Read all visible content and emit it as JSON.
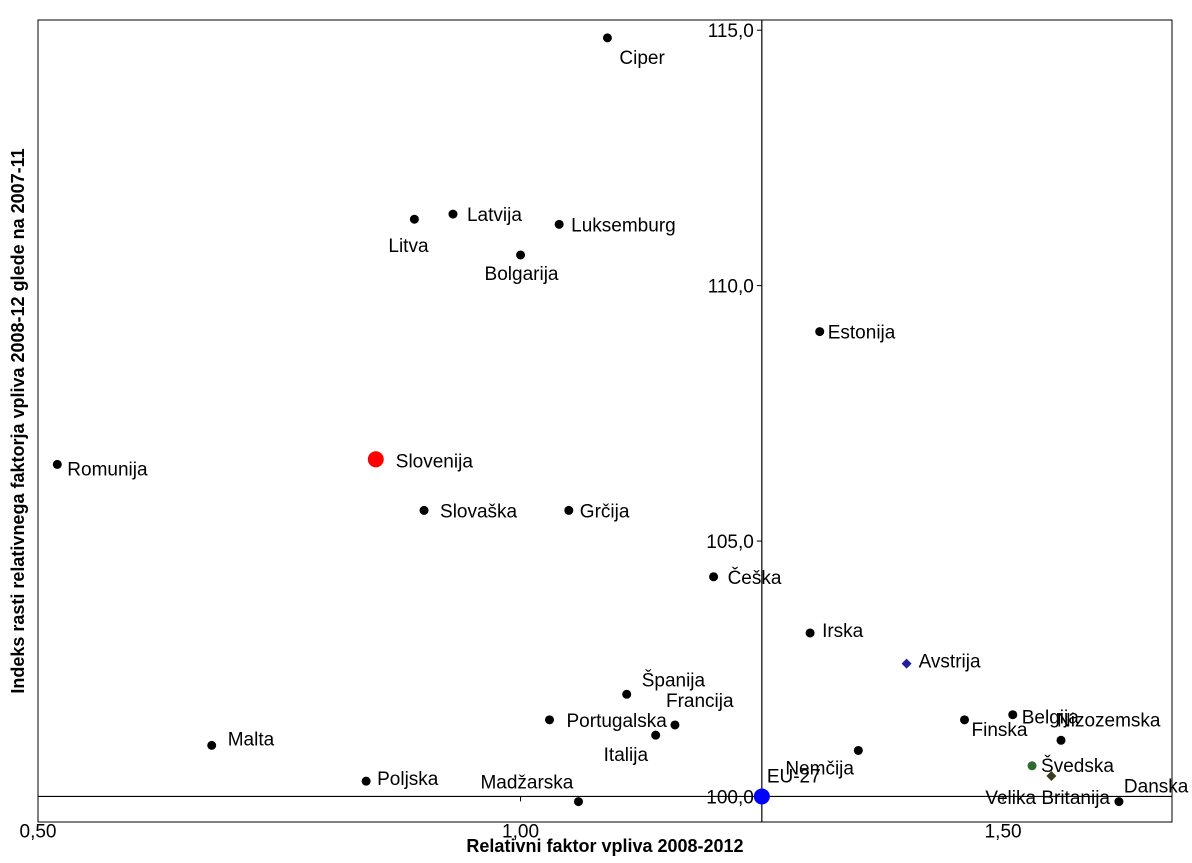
{
  "chart_data": {
    "type": "scatter",
    "xlabel": "Relativni faktor vpliva 2008-2012",
    "ylabel": "Indeks rasti relativnega faktorja vpliva 2008-12 glede na 2007-11",
    "xlim": [
      0.5,
      1.675
    ],
    "ylim": [
      99.5,
      115.2
    ],
    "x_axis_crosses_y_at": 100.0,
    "y_axis_crosses_x_at": 1.25,
    "x_ticks": [
      {
        "value": 0.5,
        "label": "0,50"
      },
      {
        "value": 1.0,
        "label": "1,00"
      },
      {
        "value": 1.5,
        "label": "1,50"
      }
    ],
    "y_ticks": [
      {
        "value": 100.0,
        "label": "100,0"
      },
      {
        "value": 105.0,
        "label": "105,0"
      },
      {
        "value": 110.0,
        "label": "110,0"
      },
      {
        "value": 115.0,
        "label": "115,0"
      }
    ],
    "grid": false,
    "points": [
      {
        "name": "Ciper",
        "x": 1.09,
        "y": 114.85,
        "color": "#000000",
        "marker": "circle",
        "highlight": false
      },
      {
        "name": "Latvija",
        "x": 0.93,
        "y": 111.4,
        "color": "#000000",
        "marker": "circle",
        "highlight": false
      },
      {
        "name": "Litva",
        "x": 0.89,
        "y": 111.3,
        "color": "#000000",
        "marker": "circle",
        "highlight": false
      },
      {
        "name": "Luksemburg",
        "x": 1.04,
        "y": 111.2,
        "color": "#000000",
        "marker": "circle",
        "highlight": false
      },
      {
        "name": "Bolgarija",
        "x": 1.0,
        "y": 110.6,
        "color": "#000000",
        "marker": "circle",
        "highlight": false
      },
      {
        "name": "Estonija",
        "x": 1.31,
        "y": 109.1,
        "color": "#000000",
        "marker": "circle",
        "highlight": false
      },
      {
        "name": "Romunija",
        "x": 0.52,
        "y": 106.5,
        "color": "#000000",
        "marker": "circle",
        "highlight": false
      },
      {
        "name": "Slovenija",
        "x": 0.85,
        "y": 106.6,
        "color": "#ff0000",
        "marker": "circle",
        "highlight": true
      },
      {
        "name": "Slovaška",
        "x": 0.9,
        "y": 105.6,
        "color": "#000000",
        "marker": "circle",
        "highlight": false
      },
      {
        "name": "Grčija",
        "x": 1.05,
        "y": 105.6,
        "color": "#000000",
        "marker": "circle",
        "highlight": false
      },
      {
        "name": "Češka",
        "x": 1.2,
        "y": 104.3,
        "color": "#000000",
        "marker": "circle",
        "highlight": false
      },
      {
        "name": "Irska",
        "x": 1.3,
        "y": 103.2,
        "color": "#000000",
        "marker": "circle",
        "highlight": false
      },
      {
        "name": "Avstrija",
        "x": 1.4,
        "y": 102.6,
        "color": "#1f1f9f",
        "marker": "diamond",
        "highlight": false
      },
      {
        "name": "Španija",
        "x": 1.11,
        "y": 102.0,
        "color": "#000000",
        "marker": "circle",
        "highlight": false
      },
      {
        "name": "Francija",
        "x": 1.16,
        "y": 101.4,
        "color": "#000000",
        "marker": "circle",
        "highlight": false
      },
      {
        "name": "Belgija",
        "x": 1.51,
        "y": 101.6,
        "color": "#000000",
        "marker": "circle",
        "highlight": false
      },
      {
        "name": "Finska",
        "x": 1.46,
        "y": 101.5,
        "color": "#000000",
        "marker": "circle",
        "highlight": false
      },
      {
        "name": "Nizozemska",
        "x": 1.56,
        "y": 101.1,
        "color": "#000000",
        "marker": "circle",
        "highlight": false
      },
      {
        "name": "Portugalska",
        "x": 1.03,
        "y": 101.5,
        "color": "#000000",
        "marker": "circle",
        "highlight": false
      },
      {
        "name": "Italija",
        "x": 1.14,
        "y": 101.2,
        "color": "#000000",
        "marker": "circle",
        "highlight": false
      },
      {
        "name": "Malta",
        "x": 0.68,
        "y": 101.0,
        "color": "#000000",
        "marker": "circle",
        "highlight": false
      },
      {
        "name": "Nemčija",
        "x": 1.35,
        "y": 100.9,
        "color": "#000000",
        "marker": "circle",
        "highlight": false
      },
      {
        "name": "Švedska",
        "x": 1.53,
        "y": 100.6,
        "color": "#2e6b2e",
        "marker": "circle",
        "highlight": false
      },
      {
        "name": "Velika Britanija",
        "x": 1.55,
        "y": 100.4,
        "color": "#3b3b1e",
        "marker": "diamond",
        "highlight": false
      },
      {
        "name": "Poljska",
        "x": 0.84,
        "y": 100.3,
        "color": "#000000",
        "marker": "circle",
        "highlight": false
      },
      {
        "name": "Danska",
        "x": 1.62,
        "y": 99.9,
        "color": "#000000",
        "marker": "circle",
        "highlight": false
      },
      {
        "name": "Madžarska",
        "x": 1.06,
        "y": 99.9,
        "color": "#000000",
        "marker": "circle",
        "highlight": false
      },
      {
        "name": "EU-27",
        "x": 1.25,
        "y": 100.0,
        "color": "#0000ff",
        "marker": "circle",
        "highlight": true
      }
    ]
  }
}
